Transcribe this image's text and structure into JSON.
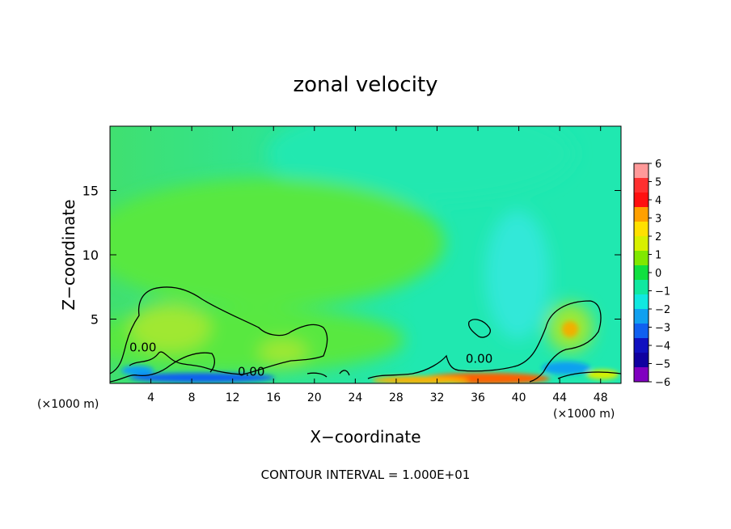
{
  "chart_data": {
    "type": "heatmap",
    "title": "zonal velocity",
    "xlabel": "X−coordinate",
    "ylabel": "Z−coordinate",
    "x_unit_left": "(×1000 m)",
    "x_unit_right": "(×1000 m)",
    "xlim": [
      0,
      50
    ],
    "ylim": [
      0,
      20
    ],
    "xticks": [
      4,
      8,
      12,
      16,
      20,
      24,
      28,
      32,
      36,
      40,
      44,
      48
    ],
    "xtick_labels": [
      "4",
      "8",
      "12",
      "16",
      "20",
      "24",
      "28",
      "32",
      "36",
      "40",
      "44",
      "48"
    ],
    "yticks": [
      5,
      10,
      15
    ],
    "ytick_labels": [
      "5",
      "10",
      "15"
    ],
    "footer": "CONTOUR INTERVAL = 1.000E+01",
    "colorbar": {
      "levels": [
        6,
        5,
        4,
        3,
        2,
        1,
        0,
        -1,
        -2,
        -3,
        -4,
        -5,
        -6
      ],
      "labels": [
        "6",
        "5",
        "4",
        "3",
        "2",
        "1",
        "0",
        "−1",
        "−2",
        "−3",
        "−4",
        "−5",
        "−6"
      ],
      "colors": [
        "#ff9999",
        "#ff3030",
        "#ff1010",
        "#ffa000",
        "#ffe000",
        "#d8f000",
        "#80e800",
        "#10e040",
        "#10e8a0",
        "#10e8e0",
        "#10a0f0",
        "#1060f0",
        "#1010c0",
        "#1000a0",
        "#8000c0"
      ]
    },
    "contour_labels": [
      {
        "text": "0.00",
        "x": 1.9,
        "z": 2.5
      },
      {
        "text": "0.00",
        "x": 12.5,
        "z": 0.6
      },
      {
        "text": "0.00",
        "x": 34.8,
        "z": 1.6
      }
    ],
    "background_colors": {
      "upper_left": "#40e070",
      "upper_right": "#20e8b0",
      "middle": "#58e840",
      "core": "#a0e830",
      "jet": "#30e8d8"
    }
  }
}
